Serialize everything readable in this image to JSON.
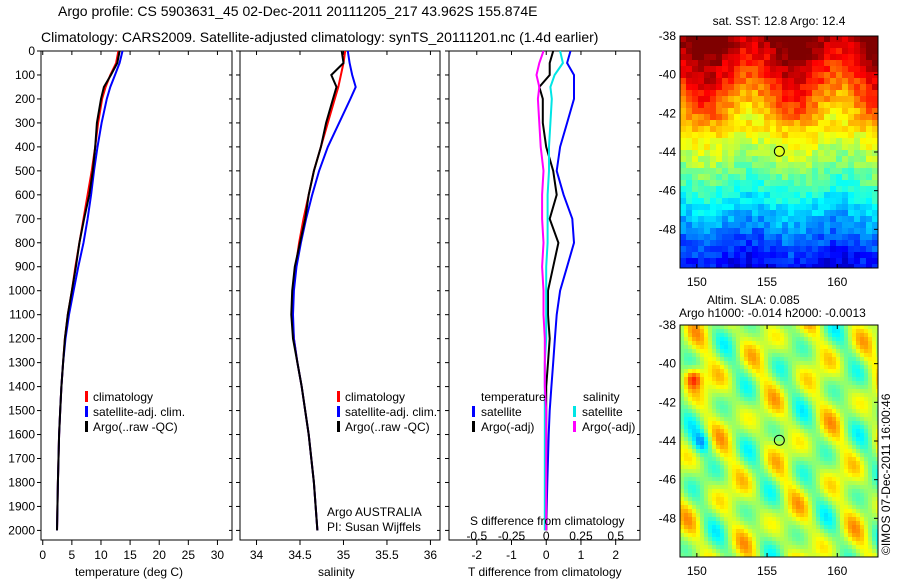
{
  "header": {
    "line1": "Argo profile: CS 5903631_45 02-Dec-2011 20111205_217 43.962S 155.874E",
    "line2": "Climatology: CARS2009. Satellite-adjusted climatology: synTS_20111201.nc (1.4d earlier)"
  },
  "colors": {
    "climatology": "#ff0000",
    "satellite": "#0000ff",
    "argo": "#000000",
    "sal_satellite": "#00e5e5",
    "sal_argo": "#ff00ff"
  },
  "chart_data": [
    {
      "type": "line",
      "title": "",
      "xlabel": "temperature (deg C)",
      "ylabel": "",
      "xlim": [
        -0.3,
        32.5
      ],
      "ylim": [
        2040,
        0
      ],
      "xticks": [
        0,
        5,
        10,
        15,
        20,
        25,
        30
      ],
      "yticks": [
        0,
        100,
        200,
        300,
        400,
        500,
        600,
        700,
        800,
        900,
        1000,
        1100,
        1200,
        1300,
        1400,
        1500,
        1600,
        1700,
        1800,
        1900,
        2000
      ],
      "depth": [
        0,
        50,
        100,
        150,
        200,
        300,
        400,
        500,
        600,
        700,
        800,
        900,
        1000,
        1100,
        1200,
        1300,
        1400,
        1500,
        1600,
        1800,
        2000
      ],
      "series": [
        {
          "name": "climatology",
          "values": [
            13.0,
            12.6,
            11.6,
            10.8,
            10.2,
            9.5,
            9.0,
            8.4,
            7.7,
            7.0,
            6.3,
            5.6,
            5.0,
            4.3,
            3.8,
            3.5,
            3.2,
            3.0,
            2.8,
            2.6,
            2.45
          ]
        },
        {
          "name": "satellite-adj. clim.",
          "values": [
            13.7,
            13.2,
            12.4,
            11.6,
            11.0,
            10.1,
            9.4,
            8.8,
            8.3,
            7.7,
            7.0,
            6.1,
            5.3,
            4.5,
            3.9,
            3.5,
            3.2,
            3.0,
            2.8,
            2.6,
            2.45
          ]
        },
        {
          "name": "Argo(..raw -QC)",
          "values": [
            13.2,
            12.8,
            11.7,
            10.5,
            10.0,
            9.3,
            9.0,
            8.6,
            8.0,
            7.1,
            6.3,
            5.7,
            5.0,
            4.3,
            3.8,
            3.5,
            3.2,
            3.0,
            2.8,
            2.6,
            2.45
          ]
        }
      ],
      "legend": [
        "climatology",
        "satellite-adj. clim.",
        "Argo(..raw -QC)"
      ],
      "legend_position": "lower-center"
    },
    {
      "type": "line",
      "xlabel": "salinity",
      "xlim": [
        33.81,
        36.11
      ],
      "ylim": [
        2040,
        0
      ],
      "xticks": [
        34,
        34.5,
        35,
        35.5,
        36
      ],
      "depth": [
        0,
        50,
        100,
        150,
        200,
        300,
        400,
        500,
        600,
        700,
        800,
        900,
        1000,
        1100,
        1200,
        1300,
        1400,
        1500,
        1600,
        1800,
        2000
      ],
      "series": [
        {
          "name": "climatology",
          "values": [
            35.02,
            35.0,
            34.97,
            34.94,
            34.9,
            34.82,
            34.74,
            34.66,
            34.6,
            34.54,
            34.49,
            34.45,
            34.42,
            34.41,
            34.43,
            34.47,
            34.52,
            34.56,
            34.6,
            34.66,
            34.7
          ]
        },
        {
          "name": "satellite-adj. clim.",
          "values": [
            35.05,
            35.07,
            35.1,
            35.14,
            35.08,
            34.95,
            34.82,
            34.72,
            34.64,
            34.57,
            34.51,
            34.46,
            34.43,
            34.42,
            34.43,
            34.47,
            34.52,
            34.56,
            34.6,
            34.66,
            34.7
          ]
        },
        {
          "name": "Argo(..raw -QC)",
          "values": [
            34.98,
            35.0,
            34.86,
            34.92,
            34.88,
            34.8,
            34.74,
            34.66,
            34.6,
            34.56,
            34.5,
            34.44,
            34.41,
            34.4,
            34.42,
            34.47,
            34.52,
            34.56,
            34.6,
            34.66,
            34.7
          ]
        }
      ],
      "legend": [
        "climatology",
        "satellite-adj. clim.",
        "Argo(..raw -QC)"
      ],
      "annotation": [
        "Argo AUSTRALIA",
        "PI: Susan Wijffels"
      ]
    },
    {
      "type": "line",
      "xlabel": "T difference from climatology",
      "xlabel_top": "S difference from climatology",
      "xlim": [
        -2.8,
        2.7
      ],
      "s_xlim": [
        -0.7,
        0.675
      ],
      "ylim": [
        2040,
        0
      ],
      "xticks": [
        -2,
        -1,
        0,
        1,
        2
      ],
      "s_xticks": [
        -0.5,
        -0.25,
        0,
        0.25,
        0.5
      ],
      "depth": [
        0,
        50,
        100,
        150,
        200,
        300,
        400,
        500,
        600,
        700,
        800,
        900,
        1000,
        1100,
        1200,
        1300,
        1400,
        1500,
        1600,
        1800,
        2000
      ],
      "series": [
        {
          "name": "temperature satellite",
          "var": "T",
          "values": [
            0.7,
            0.6,
            0.8,
            0.8,
            0.8,
            0.6,
            0.4,
            0.3,
            0.5,
            0.75,
            0.8,
            0.6,
            0.4,
            0.3,
            0.25,
            0.2,
            0.15,
            0.1,
            0.07,
            0.03,
            0.0
          ]
        },
        {
          "name": "temperature Argo(-adj)",
          "var": "T",
          "values": [
            0.2,
            0.1,
            0.1,
            -0.2,
            -0.1,
            -0.1,
            0.0,
            0.2,
            0.3,
            0.1,
            0.35,
            0.2,
            0.05,
            0.05,
            0.1,
            0.05,
            0.0,
            0.0,
            0.0,
            0.0,
            0.0
          ]
        },
        {
          "name": "salinity satellite",
          "var": "S",
          "values": [
            0.1,
            0.12,
            0.06,
            0.03,
            0.04,
            0.03,
            0.02,
            0.02,
            0.01,
            0.01,
            0.01,
            0.0,
            0.0,
            0.0,
            0.0,
            -0.01,
            -0.01,
            -0.01,
            -0.01,
            -0.01,
            -0.01
          ]
        },
        {
          "name": "salinity Argo(-adj)",
          "var": "S",
          "values": [
            -0.02,
            -0.05,
            -0.07,
            -0.05,
            -0.06,
            -0.05,
            -0.04,
            -0.02,
            -0.03,
            -0.03,
            -0.02,
            -0.03,
            -0.02,
            -0.02,
            -0.01,
            -0.01,
            -0.01,
            0.0,
            0.0,
            0.0,
            0.0
          ]
        }
      ],
      "legend": {
        "temperature": "temperature",
        "salinity": "salinity",
        "satellite": "satellite",
        "argo": "Argo(-adj)"
      }
    },
    {
      "type": "heatmap",
      "title": "sat. SST: 12.8 Argo: 12.4",
      "xlim": [
        148.8,
        162.9
      ],
      "ylim": [
        -50.0,
        -38
      ],
      "xticks": [
        150,
        155,
        160
      ],
      "yticks": [
        -38,
        -40,
        -42,
        -44,
        -46,
        -48
      ],
      "marker": {
        "lon": 155.874,
        "lat": -43.962
      }
    },
    {
      "type": "heatmap",
      "title": "Altim. SLA: 0.085",
      "subtitle": "Argo h1000: -0.014 h2000: -0.0013",
      "xlim": [
        148.8,
        162.9
      ],
      "ylim": [
        -50.0,
        -38
      ],
      "xticks": [
        150,
        155,
        160
      ],
      "yticks": [
        -38,
        -40,
        -42,
        -44,
        -46,
        -48
      ],
      "marker": {
        "lon": 155.874,
        "lat": -43.962
      }
    }
  ],
  "footer": {
    "credit": "©IMOS 07-Dec-2011 16:00:46"
  }
}
